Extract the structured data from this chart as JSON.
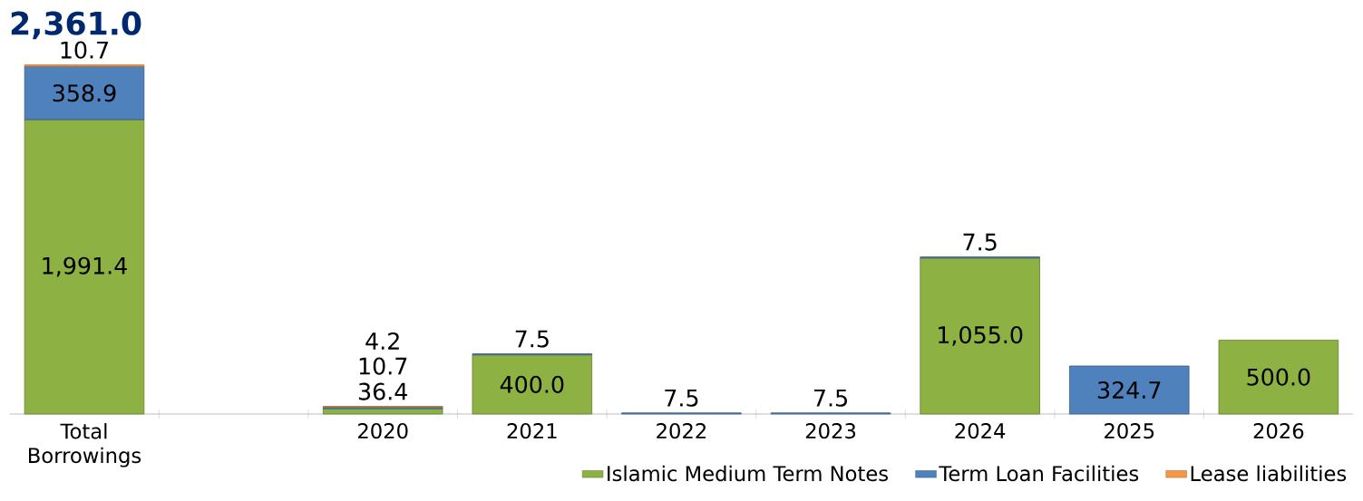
{
  "chart_data": {
    "type": "bar",
    "stacked": true,
    "title": "2,361.0",
    "categories": [
      "Total Borrowings",
      null,
      "2020",
      "2021",
      "2022",
      "2023",
      "2024",
      "2025",
      "2026"
    ],
    "series": [
      {
        "name": "Islamic Medium Term Notes",
        "color": "#8db243",
        "values": [
          1991.4,
          null,
          36.4,
          400.0,
          null,
          null,
          1055.0,
          null,
          500.0
        ],
        "value_labels": [
          "1,991.4",
          null,
          "36.4",
          "400.0",
          null,
          null,
          "1,055.0",
          null,
          "500.0"
        ]
      },
      {
        "name": "Term Loan Facilities",
        "color": "#4f81bd",
        "values": [
          358.9,
          null,
          10.7,
          7.5,
          7.5,
          7.5,
          7.5,
          324.7,
          null
        ],
        "value_labels": [
          "358.9",
          null,
          "10.7",
          "7.5",
          "7.5",
          "7.5",
          "7.5",
          "324.7",
          null
        ]
      },
      {
        "name": "Lease liabilities",
        "color": "#f79646",
        "values": [
          10.7,
          null,
          4.2,
          null,
          null,
          null,
          null,
          null,
          null
        ],
        "value_labels": [
          "10.7",
          null,
          "4.2",
          null,
          null,
          null,
          null,
          null,
          null
        ]
      }
    ],
    "legend": "bottom right"
  }
}
